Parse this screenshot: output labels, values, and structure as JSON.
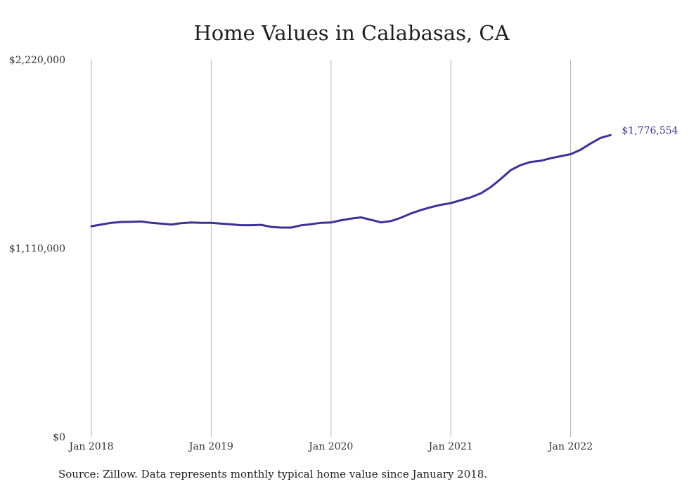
{
  "title": "Home Values in Calabasas, CA",
  "source": "Source: Zillow. Data represents monthly typical home value since January 2018.",
  "colors": {
    "line": "#3b3295",
    "grid": "#b5b5b5",
    "text": "#333333"
  },
  "chart_data": {
    "type": "line",
    "title": "Home Values in Calabasas, CA",
    "xlabel": "",
    "ylabel": "",
    "ylim": [
      0,
      2220000
    ],
    "y_ticks": [
      {
        "value": 0,
        "label": "$0"
      },
      {
        "value": 1110000,
        "label": "$1,110,000"
      },
      {
        "value": 2220000,
        "label": "$2,220,000"
      }
    ],
    "x_ticks": [
      {
        "index": 0,
        "label": "Jan 2018"
      },
      {
        "index": 12,
        "label": "Jan 2019"
      },
      {
        "index": 24,
        "label": "Jan 2020"
      },
      {
        "index": 36,
        "label": "Jan 2021"
      },
      {
        "index": 48,
        "label": "Jan 2022"
      }
    ],
    "grid": "vertical",
    "end_label": "$1,776,554",
    "series": [
      {
        "x": [
          "2018-01",
          "2018-02",
          "2018-03",
          "2018-04",
          "2018-05",
          "2018-06",
          "2018-07",
          "2018-08",
          "2018-09",
          "2018-10",
          "2018-11",
          "2018-12",
          "2019-01",
          "2019-02",
          "2019-03",
          "2019-04",
          "2019-05",
          "2019-06",
          "2019-07",
          "2019-08",
          "2019-09",
          "2019-10",
          "2019-11",
          "2019-12",
          "2020-01",
          "2020-02",
          "2020-03",
          "2020-04",
          "2020-05",
          "2020-06",
          "2020-07",
          "2020-08",
          "2020-09",
          "2020-10",
          "2020-11",
          "2020-12",
          "2021-01",
          "2021-02",
          "2021-03",
          "2021-04",
          "2021-05",
          "2021-06",
          "2021-07",
          "2021-08",
          "2021-09",
          "2021-10",
          "2021-11",
          "2021-12",
          "2022-01",
          "2022-02",
          "2022-03",
          "2022-04",
          "2022-05"
        ],
        "values": [
          1240000,
          1250000,
          1260000,
          1265000,
          1266000,
          1268000,
          1260000,
          1255000,
          1250000,
          1258000,
          1262000,
          1260000,
          1260000,
          1255000,
          1251000,
          1246000,
          1246000,
          1248000,
          1236000,
          1232000,
          1232000,
          1245000,
          1252000,
          1260000,
          1262000,
          1275000,
          1285000,
          1292000,
          1278000,
          1263000,
          1270000,
          1290000,
          1315000,
          1335000,
          1352000,
          1366000,
          1376000,
          1393000,
          1410000,
          1433000,
          1470000,
          1518000,
          1570000,
          1600000,
          1618000,
          1625000,
          1640000,
          1652000,
          1664000,
          1690000,
          1727000,
          1760000,
          1776554
        ]
      }
    ]
  }
}
